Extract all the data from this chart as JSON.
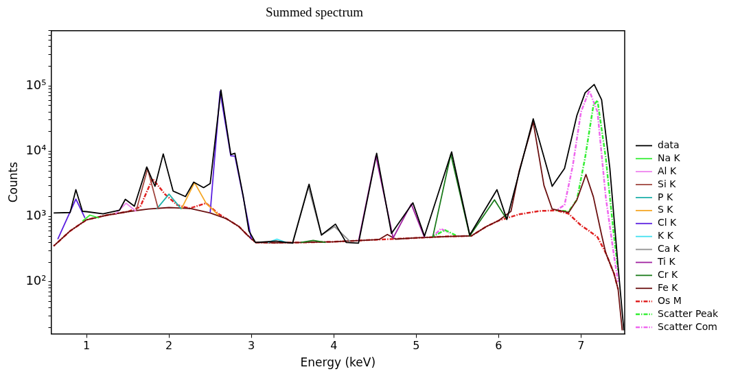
{
  "chart_data": {
    "type": "line",
    "title": "Summed spectrum",
    "xlabel": "Energy (keV)",
    "ylabel": "Counts",
    "log": "y",
    "grid": false,
    "legend": "right",
    "line_style": "solid",
    "marker": "none",
    "xlim": [
      0.57,
      7.53
    ],
    "xticks": [
      1,
      2,
      3,
      4,
      5,
      6,
      7
    ],
    "ylim": [
      16,
      700000
    ],
    "yticks": [
      {
        "value": 20,
        "label": null
      },
      {
        "value": 30,
        "label": null
      },
      {
        "value": 40,
        "label": null
      },
      {
        "value": 50,
        "label": null
      },
      {
        "value": 60,
        "label": null
      },
      {
        "value": 70,
        "label": null
      },
      {
        "value": 80,
        "label": null
      },
      {
        "value": 90,
        "label": null
      },
      {
        "value": 100,
        "label": "10²"
      },
      {
        "value": 200,
        "label": null
      },
      {
        "value": 300,
        "label": null
      },
      {
        "value": 400,
        "label": null
      },
      {
        "value": 500,
        "label": null
      },
      {
        "value": 600,
        "label": null
      },
      {
        "value": 700,
        "label": null
      },
      {
        "value": 800,
        "label": null
      },
      {
        "value": 900,
        "label": null
      },
      {
        "value": 1000,
        "label": "10³"
      },
      {
        "value": 2000,
        "label": null
      },
      {
        "value": 3000,
        "label": null
      },
      {
        "value": 4000,
        "label": null
      },
      {
        "value": 5000,
        "label": null
      },
      {
        "value": 6000,
        "label": null
      },
      {
        "value": 7000,
        "label": null
      },
      {
        "value": 8000,
        "label": null
      },
      {
        "value": 9000,
        "label": null
      },
      {
        "value": 10000,
        "label": "10⁴"
      },
      {
        "value": 20000,
        "label": null
      },
      {
        "value": 30000,
        "label": null
      },
      {
        "value": 40000,
        "label": null
      },
      {
        "value": 50000,
        "label": null
      },
      {
        "value": 60000,
        "label": null
      },
      {
        "value": 70000,
        "label": null
      },
      {
        "value": 80000,
        "label": null
      },
      {
        "value": 90000,
        "label": null
      },
      {
        "value": 100000,
        "label": "10⁵"
      },
      {
        "value": 200000,
        "label": null
      },
      {
        "value": 300000,
        "label": null
      },
      {
        "value": 400000,
        "label": null
      },
      {
        "value": 500000,
        "label": null
      },
      {
        "value": 600000,
        "label": null
      },
      {
        "value": 700000,
        "label": null
      }
    ],
    "series": [
      {
        "name": "data",
        "color": "#000000",
        "x": [
          0.6,
          0.8,
          0.87,
          0.95,
          1.0,
          1.2,
          1.4,
          1.47,
          1.58,
          1.73,
          1.83,
          1.93,
          2.05,
          2.2,
          2.3,
          2.42,
          2.5,
          2.63,
          2.75,
          2.8,
          2.9,
          2.97,
          3.05,
          3.3,
          3.5,
          3.7,
          3.85,
          4.02,
          4.15,
          4.3,
          4.52,
          4.7,
          4.96,
          5.1,
          5.43,
          5.65,
          5.98,
          6.1,
          6.42,
          6.65,
          6.8,
          6.95,
          7.05,
          7.16,
          7.25,
          7.35,
          7.45,
          7.52
        ],
        "values": [
          1130,
          1150,
          2570,
          1200,
          1185,
          1100,
          1250,
          1830,
          1440,
          5730,
          2900,
          9080,
          2450,
          2020,
          3360,
          2770,
          3200,
          86500,
          8850,
          9300,
          2070,
          600,
          400,
          420,
          390,
          3120,
          520,
          765,
          400,
          390,
          9300,
          550,
          1620,
          500,
          9770,
          520,
          2570,
          900,
          31300,
          2900,
          5450,
          35300,
          78600,
          105000,
          61500,
          5450,
          170,
          18
        ]
      },
      {
        "name": "Na K",
        "color": "#33ee33",
        "x": [
          0.95,
          1.04,
          1.15
        ],
        "values": [
          850,
          1050,
          950
        ]
      },
      {
        "name": "Al K",
        "color": "#ee82ee",
        "x": [
          1.35,
          1.48,
          1.6
        ],
        "values": [
          1100,
          1600,
          1200
        ]
      },
      {
        "name": "Si K",
        "color": "#a0463f",
        "x": [
          1.6,
          1.74,
          1.87
        ],
        "values": [
          1200,
          5400,
          1300
        ]
      },
      {
        "name": "P K",
        "color": "#20b2aa",
        "x": [
          1.85,
          2.0,
          2.15
        ],
        "values": [
          1300,
          2200,
          1300
        ]
      },
      {
        "name": "S K",
        "color": "#f5a623",
        "x": [
          2.15,
          2.31,
          2.45,
          2.6
        ],
        "values": [
          1300,
          3300,
          1600,
          1050
        ]
      },
      {
        "name": "Cl K",
        "color": "#5a1ee0",
        "x": [
          0.65,
          0.87,
          0.98,
          1.7,
          2.5,
          2.62,
          2.75,
          2.8,
          2.9,
          3.0
        ],
        "values": [
          450,
          1850,
          950,
          null,
          1150,
          82000,
          8500,
          8400,
          2000,
          450
        ]
      },
      {
        "name": "K K",
        "color": "#40e0f0",
        "x": [
          3.2,
          3.31,
          3.42
        ],
        "values": [
          400,
          450,
          400
        ]
      },
      {
        "name": "Ca K",
        "color": "#909090",
        "x": [
          3.5,
          3.69,
          3.85,
          4.01,
          4.2
        ],
        "values": [
          400,
          2900,
          520,
          700,
          410
        ]
      },
      {
        "name": "Ti K",
        "color": "#a020a0",
        "x": [
          4.3,
          4.51,
          4.72,
          4.94,
          5.1
        ],
        "values": [
          420,
          8500,
          470,
          1550,
          480
        ]
      },
      {
        "name": "Cr K",
        "color": "#1a7a1a",
        "x": [
          3.6,
          3.75,
          3.9,
          4.5,
          5.2,
          5.42,
          5.65,
          5.95,
          6.1
        ],
        "values": [
          400,
          430,
          400,
          null,
          480,
          9000,
          505,
          1800,
          900
        ]
      },
      {
        "name": "Fe K",
        "color": "#6b1010",
        "x": [
          0.6,
          0.8,
          1.0,
          1.25,
          1.5,
          1.75,
          2.0,
          2.25,
          2.5,
          2.7,
          2.85,
          2.95,
          3.05,
          3.3,
          3.6,
          4.0,
          4.5,
          4.55,
          4.65,
          4.75,
          5.0,
          5.4,
          5.67,
          5.85,
          6.0,
          6.15,
          6.25,
          6.42,
          6.55,
          6.65,
          6.85,
          6.95,
          7.06,
          7.15,
          7.25,
          7.3,
          7.4,
          7.45,
          7.5
        ],
        "values": [
          352,
          600,
          890,
          1050,
          1185,
          1300,
          1370,
          1330,
          1130,
          920,
          700,
          520,
          400,
          395,
          400,
          410,
          440,
          445,
          530,
          450,
          470,
          495,
          505,
          700,
          865,
          1200,
          5000,
          28000,
          3000,
          1300,
          1150,
          1800,
          4400,
          2000,
          520,
          277,
          134,
          77,
          18
        ]
      },
      {
        "name": "Os M",
        "color": "#e02020",
        "line_style": "dashed",
        "x": [
          0.6,
          0.8,
          1.0,
          1.25,
          1.5,
          1.65,
          1.8,
          1.95,
          2.1,
          2.25,
          2.45,
          2.6,
          2.7,
          2.85,
          2.95,
          3.05,
          3.3,
          3.6,
          4.0,
          4.5,
          5.0,
          5.4,
          5.67,
          5.85,
          6.0,
          6.25,
          6.5,
          6.7,
          6.85,
          7.0,
          7.1,
          7.2,
          7.3,
          7.4,
          7.45
        ],
        "values": [
          352,
          600,
          890,
          1050,
          1185,
          1400,
          3800,
          2200,
          1500,
          1330,
          1600,
          1100,
          920,
          700,
          520,
          400,
          395,
          400,
          410,
          440,
          470,
          495,
          505,
          700,
          865,
          1080,
          1215,
          1240,
          1100,
          730,
          600,
          483,
          277,
          134,
          77
        ]
      },
      {
        "name": "Scatter Peak",
        "color": "#33ee33",
        "line_style": "dashed",
        "x": [
          5.2,
          5.35,
          5.5,
          6.0,
          6.7,
          6.85,
          6.95,
          7.05,
          7.15,
          7.2,
          7.3,
          7.4,
          7.45
        ],
        "values": [
          490,
          620,
          500,
          null,
          1240,
          1200,
          1800,
          8000,
          50000,
          60000,
          8000,
          500,
          150
        ]
      },
      {
        "name": "Scatter Com",
        "color": "#ee66ee",
        "line_style": "dashed",
        "x": [
          5.2,
          5.3,
          5.4,
          6.0,
          6.7,
          6.8,
          6.9,
          7.0,
          7.1,
          7.2,
          7.3,
          7.4,
          7.45
        ],
        "values": [
          490,
          650,
          560,
          null,
          1240,
          1500,
          6000,
          40000,
          85000,
          40000,
          2000,
          250,
          100
        ]
      }
    ]
  }
}
